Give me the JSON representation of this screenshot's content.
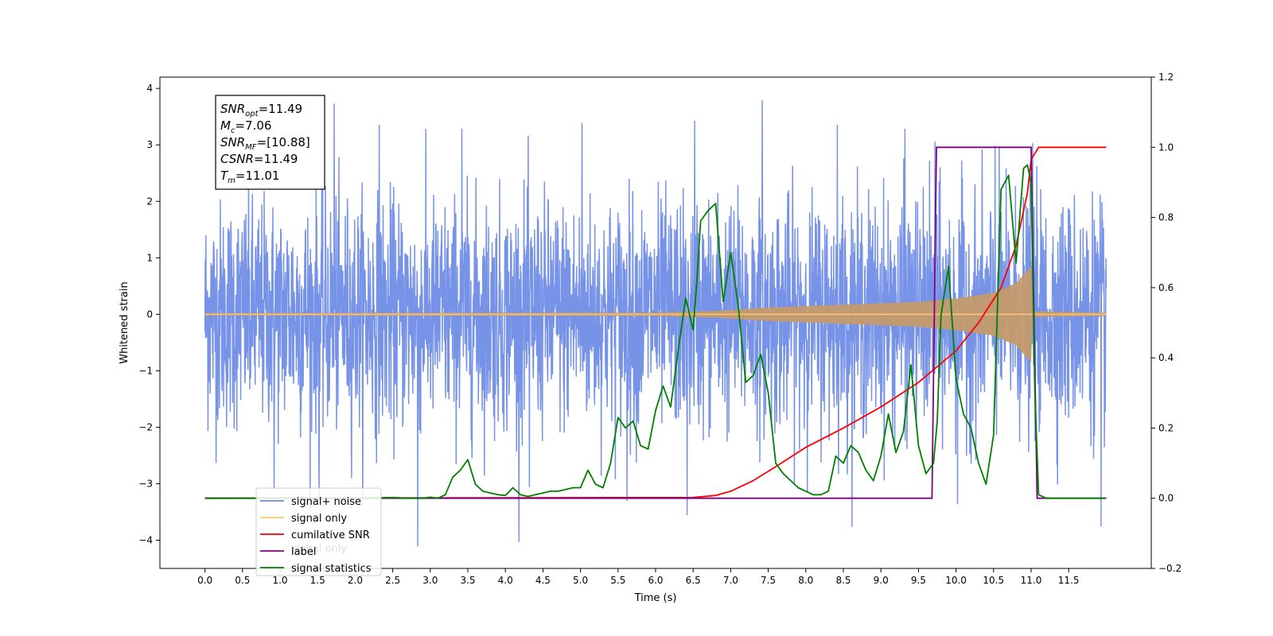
{
  "chart_data": {
    "type": "line",
    "xlabel": "Time (s)",
    "ylabel": "Whitened strain",
    "xlim": [
      -0.6,
      12.6
    ],
    "ylim": [
      -4.5,
      4.2
    ],
    "y2lim": [
      -0.2,
      1.2
    ],
    "x_ticks": [
      "0.0",
      "0.5",
      "1.0",
      "1.5",
      "2.0",
      "2.5",
      "3.0",
      "3.5",
      "4.0",
      "4.5",
      "5.0",
      "5.5",
      "6.0",
      "6.5",
      "7.0",
      "7.5",
      "8.0",
      "8.5",
      "9.0",
      "9.5",
      "10.0",
      "10.5",
      "11.0",
      "11.5"
    ],
    "y_ticks": [
      "4",
      "3",
      "2",
      "1",
      "0",
      "−1",
      "−2",
      "−3",
      "−4"
    ],
    "y2_ticks": [
      "1.2",
      "1.0",
      "0.8",
      "0.6",
      "0.4",
      "0.2",
      "0.0",
      "−0.2"
    ],
    "annotation": {
      "lines": [
        {
          "base": "SNR",
          "sub": "opt",
          "value": "=11.49"
        },
        {
          "base": "M",
          "sub": "c",
          "value": "=7.06"
        },
        {
          "base": "SNR",
          "sub": "MF",
          "value": "=[10.88]"
        },
        {
          "base": "CSNR",
          "sub": "",
          "value": "=11.49"
        },
        {
          "base": "T",
          "sub": "m",
          "value": "=11.01"
        }
      ]
    },
    "legend": {
      "placement": "lower-left",
      "entries": [
        {
          "label": "signal+ noise",
          "color": "#6b8ae6"
        },
        {
          "label": "signal only",
          "color": "#ffc878"
        },
        {
          "label": "cumilative SNR",
          "color": "#ff0000"
        },
        {
          "label": "label",
          "color": "#800080"
        },
        {
          "label": "signal statistics",
          "color": "#008000"
        }
      ],
      "ghost_label": "signal only"
    },
    "series": [
      {
        "name": "signal+ noise",
        "axis": "left",
        "color": "#6b8ae6",
        "x_range": [
          0.0,
          12.0
        ],
        "sigma": 1.0,
        "tall_spikes": [
          [
            1.72,
            3.72
          ],
          [
            2.32,
            3.35
          ],
          [
            3.42,
            3.28
          ],
          [
            5.02,
            3.38
          ],
          [
            6.52,
            3.42
          ],
          [
            7.42,
            3.78
          ],
          [
            8.42,
            3.35
          ],
          [
            9.32,
            3.28
          ],
          [
            9.72,
            3.05
          ],
          [
            10.52,
            2.98
          ],
          [
            11.02,
            3.02
          ],
          [
            2.83,
            -4.1
          ],
          [
            6.42,
            -3.55
          ],
          [
            11.93,
            -3.75
          ],
          [
            5.62,
            -3.3
          ],
          [
            1.52,
            -3.25
          ],
          [
            10.02,
            -3.35
          ],
          [
            0.92,
            -3.1
          ],
          [
            4.32,
            -3.05
          ]
        ]
      },
      {
        "name": "signal only",
        "axis": "left",
        "color": "#ffc878",
        "envelope": [
          [
            0.0,
            0.02
          ],
          [
            6.0,
            0.03
          ],
          [
            6.8,
            0.06
          ],
          [
            7.5,
            0.12
          ],
          [
            8.5,
            0.17
          ],
          [
            9.5,
            0.22
          ],
          [
            10.0,
            0.28
          ],
          [
            10.5,
            0.38
          ],
          [
            10.8,
            0.55
          ],
          [
            10.95,
            0.78
          ],
          [
            11.0,
            0.85
          ],
          [
            11.02,
            0.05
          ],
          [
            12.0,
            0.03
          ]
        ]
      },
      {
        "name": "cumilative SNR",
        "axis": "right",
        "color": "#ff0000",
        "x": [
          0.0,
          6.5,
          6.8,
          7.0,
          7.3,
          7.6,
          8.0,
          8.5,
          9.0,
          9.5,
          10.0,
          10.3,
          10.6,
          10.8,
          10.95,
          11.0,
          11.1,
          12.0
        ],
        "y": [
          0.0,
          0.002,
          0.008,
          0.02,
          0.05,
          0.09,
          0.145,
          0.2,
          0.26,
          0.33,
          0.42,
          0.5,
          0.6,
          0.72,
          0.87,
          0.965,
          1.0,
          1.0
        ]
      },
      {
        "name": "label",
        "axis": "right",
        "color": "#800080",
        "x": [
          0.0,
          9.68,
          9.74,
          11.0,
          11.08,
          12.0
        ],
        "y": [
          0.0,
          0.0,
          1.0,
          1.0,
          0.0,
          0.0
        ]
      },
      {
        "name": "signal statistics",
        "axis": "right",
        "color": "#008000",
        "x": [
          0.0,
          0.5,
          1.0,
          1.5,
          2.0,
          2.5,
          2.7,
          2.9,
          3.0,
          3.1,
          3.2,
          3.3,
          3.4,
          3.5,
          3.6,
          3.7,
          3.8,
          3.9,
          4.0,
          4.1,
          4.2,
          4.3,
          4.4,
          4.5,
          4.6,
          4.7,
          4.8,
          4.9,
          5.0,
          5.1,
          5.2,
          5.3,
          5.4,
          5.5,
          5.6,
          5.7,
          5.8,
          5.9,
          6.0,
          6.1,
          6.2,
          6.3,
          6.4,
          6.5,
          6.55,
          6.6,
          6.7,
          6.8,
          6.9,
          7.0,
          7.1,
          7.2,
          7.3,
          7.4,
          7.5,
          7.6,
          7.7,
          7.8,
          7.9,
          8.0,
          8.1,
          8.2,
          8.3,
          8.4,
          8.5,
          8.6,
          8.7,
          8.8,
          8.9,
          9.0,
          9.1,
          9.2,
          9.3,
          9.4,
          9.5,
          9.6,
          9.7,
          9.75,
          9.8,
          9.9,
          10.0,
          10.1,
          10.2,
          10.3,
          10.4,
          10.5,
          10.6,
          10.7,
          10.8,
          10.9,
          10.95,
          11.0,
          11.05,
          11.1,
          11.2,
          12.0
        ],
        "y": [
          0.0,
          0.0,
          0.0,
          0.0,
          0.0,
          0.002,
          0.0,
          0.0,
          0.003,
          0.0,
          0.01,
          0.06,
          0.08,
          0.11,
          0.04,
          0.02,
          0.015,
          0.01,
          0.008,
          0.03,
          0.01,
          0.005,
          0.01,
          0.015,
          0.02,
          0.02,
          0.025,
          0.03,
          0.03,
          0.08,
          0.04,
          0.03,
          0.1,
          0.23,
          0.2,
          0.22,
          0.15,
          0.14,
          0.25,
          0.32,
          0.26,
          0.42,
          0.57,
          0.48,
          0.62,
          0.79,
          0.82,
          0.84,
          0.56,
          0.7,
          0.55,
          0.33,
          0.35,
          0.41,
          0.3,
          0.1,
          0.07,
          0.05,
          0.03,
          0.02,
          0.01,
          0.01,
          0.02,
          0.12,
          0.1,
          0.15,
          0.13,
          0.08,
          0.05,
          0.12,
          0.24,
          0.13,
          0.19,
          0.38,
          0.15,
          0.07,
          0.1,
          0.22,
          0.52,
          0.66,
          0.34,
          0.24,
          0.2,
          0.1,
          0.04,
          0.18,
          0.88,
          0.92,
          0.67,
          0.94,
          0.95,
          0.9,
          0.3,
          0.01,
          0.0,
          0.0
        ]
      }
    ]
  }
}
